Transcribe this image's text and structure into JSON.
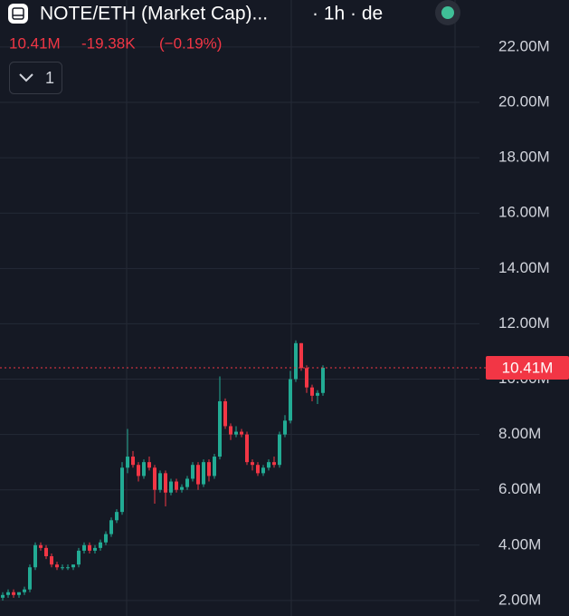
{
  "chart_data": {
    "type": "candlestick",
    "title": "NOTE/ETH (Market Cap)...",
    "subtitle": "· 1h · de",
    "last": {
      "value": 10.41,
      "label": "10.41M"
    },
    "change": {
      "value": -0.01938,
      "label": "-19.38K"
    },
    "change_pct": {
      "value": -0.19,
      "label": "(−0.19%)"
    },
    "indicator_count": "1",
    "up_color": "#22ab94",
    "down_color": "#f23645",
    "grid": true,
    "ylim": [
      1.44,
      23.7
    ],
    "yticks": [
      {
        "value": 2,
        "label": "2.00M"
      },
      {
        "value": 4,
        "label": "4.00M"
      },
      {
        "value": 6,
        "label": "6.00M"
      },
      {
        "value": 8,
        "label": "8.00M"
      },
      {
        "value": 10,
        "label": "10.00M"
      },
      {
        "value": 12,
        "label": "12.00M"
      },
      {
        "value": 14,
        "label": "14.00M"
      },
      {
        "value": 16,
        "label": "16.00M"
      },
      {
        "value": 18,
        "label": "18.00M"
      },
      {
        "value": 20,
        "label": "20.00M"
      },
      {
        "value": 22,
        "label": "22.00M"
      }
    ],
    "open": [
      2.1,
      2.2,
      2.3,
      2.2,
      2.3,
      2.4,
      3.2,
      4.0,
      3.9,
      3.6,
      3.3,
      3.2,
      3.2,
      3.2,
      3.3,
      3.8,
      4.0,
      3.8,
      3.9,
      4.1,
      4.4,
      4.9,
      5.2,
      6.8,
      7.2,
      6.9,
      6.5,
      7.0,
      6.8,
      6.0,
      6.6,
      5.9,
      6.3,
      6.0,
      6.1,
      6.4,
      6.9,
      6.2,
      7.0,
      6.5,
      7.2,
      9.2,
      8.3,
      8.0,
      8.1,
      8.0,
      7.0,
      6.9,
      6.6,
      6.8,
      7.0,
      6.9,
      8.0,
      8.5,
      10.0,
      11.3,
      10.4,
      9.7,
      9.4,
      9.5
    ],
    "high": [
      2.3,
      2.4,
      2.4,
      2.3,
      2.5,
      3.3,
      4.1,
      4.1,
      4.0,
      3.7,
      3.4,
      3.3,
      3.3,
      3.3,
      3.9,
      4.1,
      4.1,
      4.0,
      4.2,
      4.5,
      5.0,
      5.3,
      7.0,
      8.2,
      7.4,
      7.0,
      7.1,
      7.2,
      6.9,
      6.7,
      6.7,
      6.4,
      6.4,
      6.2,
      6.5,
      7.0,
      7.0,
      7.1,
      7.1,
      7.3,
      10.1,
      9.3,
      8.4,
      8.3,
      8.2,
      8.1,
      7.1,
      7.0,
      6.9,
      7.1,
      7.2,
      8.1,
      8.7,
      10.3,
      11.4,
      11.3,
      10.5,
      9.8,
      9.6,
      10.5
    ],
    "low": [
      2.0,
      2.1,
      2.1,
      2.1,
      2.2,
      2.3,
      3.1,
      3.8,
      3.5,
      3.2,
      3.1,
      3.1,
      3.1,
      3.1,
      3.2,
      3.7,
      3.7,
      3.7,
      3.8,
      4.0,
      4.3,
      4.8,
      5.1,
      6.6,
      6.8,
      6.3,
      6.4,
      6.7,
      5.5,
      5.9,
      5.4,
      5.8,
      5.9,
      5.9,
      6.0,
      6.3,
      6.0,
      6.1,
      6.3,
      6.4,
      7.1,
      8.2,
      7.8,
      7.9,
      7.9,
      6.9,
      6.7,
      6.5,
      6.5,
      6.7,
      6.8,
      6.8,
      7.9,
      8.4,
      9.9,
      10.3,
      9.5,
      9.2,
      9.1,
      9.4
    ],
    "close": [
      2.2,
      2.3,
      2.2,
      2.3,
      2.4,
      3.2,
      4.0,
      3.9,
      3.6,
      3.3,
      3.2,
      3.2,
      3.2,
      3.3,
      3.8,
      4.0,
      3.8,
      3.9,
      4.1,
      4.4,
      4.9,
      5.2,
      6.8,
      7.2,
      6.9,
      6.5,
      7.0,
      6.8,
      6.0,
      6.6,
      5.9,
      6.3,
      6.0,
      6.1,
      6.4,
      6.9,
      6.2,
      7.0,
      6.5,
      7.2,
      9.2,
      8.3,
      8.0,
      8.1,
      8.0,
      7.0,
      6.9,
      6.6,
      6.8,
      7.0,
      6.9,
      8.0,
      8.5,
      10.0,
      11.3,
      10.4,
      9.7,
      9.4,
      9.5,
      10.41
    ]
  }
}
